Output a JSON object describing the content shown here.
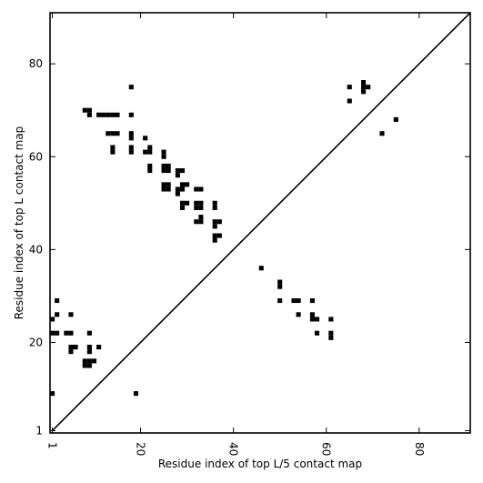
{
  "chart_data": {
    "type": "scatter",
    "xlabel": "Residue index of top L/5 contact map",
    "ylabel": "Residue index of top L contact map",
    "xlim": [
      0.5,
      91
    ],
    "ylim": [
      0.5,
      91
    ],
    "x_ticks": [
      {
        "value": 1,
        "label": "1"
      },
      {
        "value": 20,
        "label": "20"
      },
      {
        "value": 40,
        "label": "40"
      },
      {
        "value": 60,
        "label": "60"
      },
      {
        "value": 80,
        "label": "80"
      }
    ],
    "y_ticks": [
      {
        "value": 1,
        "label": "1"
      },
      {
        "value": 20,
        "label": "20"
      },
      {
        "value": 40,
        "label": "40"
      },
      {
        "value": 60,
        "label": "60"
      },
      {
        "value": 80,
        "label": "80"
      }
    ],
    "diagonal": [
      [
        1,
        1
      ],
      [
        91,
        91
      ]
    ],
    "series": [
      {
        "role": "upper-triangle",
        "cells": [
          [
            8,
            70
          ],
          [
            9,
            70
          ],
          [
            9,
            69
          ],
          [
            11,
            69
          ],
          [
            12,
            69
          ],
          [
            13,
            69
          ],
          [
            14,
            69
          ],
          [
            15,
            69
          ],
          [
            18,
            69
          ],
          [
            18,
            75
          ],
          [
            13,
            65
          ],
          [
            14,
            65
          ],
          [
            15,
            65
          ],
          [
            18,
            65
          ],
          [
            18,
            64
          ],
          [
            14,
            62
          ],
          [
            14,
            61
          ],
          [
            18,
            62
          ],
          [
            18,
            61
          ],
          [
            21,
            64
          ],
          [
            21,
            61
          ],
          [
            22,
            61
          ],
          [
            22,
            62
          ],
          [
            22,
            58
          ],
          [
            22,
            57
          ],
          [
            25,
            61
          ],
          [
            25,
            60
          ],
          [
            25,
            58
          ],
          [
            26,
            58
          ],
          [
            25,
            57
          ],
          [
            26,
            57
          ],
          [
            25,
            54
          ],
          [
            26,
            54
          ],
          [
            25,
            53
          ],
          [
            26,
            53
          ],
          [
            28,
            57
          ],
          [
            29,
            57
          ],
          [
            28,
            56
          ],
          [
            28,
            53
          ],
          [
            28,
            52
          ],
          [
            29,
            53
          ],
          [
            29,
            54
          ],
          [
            30,
            54
          ],
          [
            29,
            50
          ],
          [
            30,
            50
          ],
          [
            29,
            49
          ],
          [
            32,
            53
          ],
          [
            33,
            53
          ],
          [
            32,
            50
          ],
          [
            33,
            50
          ],
          [
            32,
            49
          ],
          [
            33,
            49
          ],
          [
            32,
            46
          ],
          [
            33,
            46
          ],
          [
            33,
            47
          ],
          [
            36,
            50
          ],
          [
            36,
            49
          ],
          [
            36,
            46
          ],
          [
            37,
            46
          ],
          [
            36,
            45
          ],
          [
            36,
            43
          ],
          [
            37,
            43
          ],
          [
            36,
            42
          ],
          [
            65,
            75
          ],
          [
            65,
            72
          ],
          [
            68,
            76
          ],
          [
            68,
            75
          ],
          [
            69,
            75
          ],
          [
            68,
            74
          ],
          [
            72,
            65
          ],
          [
            75,
            68
          ]
        ]
      },
      {
        "role": "lower-triangle",
        "cells": [
          [
            1,
            25
          ],
          [
            1,
            22
          ],
          [
            2,
            22
          ],
          [
            2,
            29
          ],
          [
            2,
            26
          ],
          [
            4,
            22
          ],
          [
            5,
            22
          ],
          [
            5,
            26
          ],
          [
            5,
            19
          ],
          [
            6,
            19
          ],
          [
            5,
            18
          ],
          [
            9,
            22
          ],
          [
            9,
            19
          ],
          [
            9,
            18
          ],
          [
            11,
            19
          ],
          [
            8,
            16
          ],
          [
            9,
            16
          ],
          [
            10,
            16
          ],
          [
            8,
            15
          ],
          [
            9,
            15
          ],
          [
            1,
            9
          ],
          [
            19,
            9
          ],
          [
            46,
            36
          ],
          [
            50,
            33
          ],
          [
            50,
            32
          ],
          [
            50,
            29
          ],
          [
            53,
            29
          ],
          [
            54,
            29
          ],
          [
            54,
            26
          ],
          [
            57,
            29
          ],
          [
            57,
            26
          ],
          [
            57,
            25
          ],
          [
            58,
            25
          ],
          [
            58,
            22
          ],
          [
            61,
            25
          ],
          [
            61,
            22
          ],
          [
            61,
            21
          ]
        ]
      }
    ],
    "colors": {
      "marker": "#000000",
      "axes": "#000000",
      "background": "#ffffff"
    }
  }
}
